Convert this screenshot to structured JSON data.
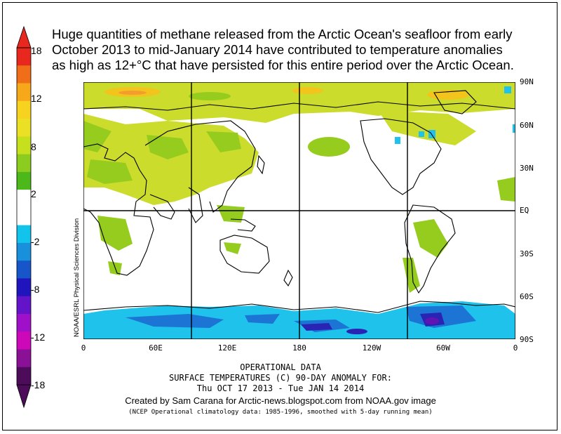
{
  "headline": "Huge quantities of methane released from the Arctic Ocean's seafloor from early\nOctober 2013 to mid-January 2014 have contributed to temperature anomalies\nas high as 12+°C that have persisted for this entire period over the Arctic Ocean.",
  "color_scale": {
    "labels": [
      "18",
      "12",
      "8",
      "2",
      "-2",
      "-8",
      "-12",
      "-18"
    ],
    "bands": [
      "#e8281e",
      "#f06e18",
      "#f7a81a",
      "#f7d21e",
      "#ece024",
      "#c6e01e",
      "#8ccc1e",
      "#4cb81a",
      "#ffffff",
      "#ffffff",
      "#12c4ec",
      "#1890dc",
      "#1656c8",
      "#2014bc",
      "#6414c8",
      "#a010c8",
      "#cc08b8",
      "#8a1096",
      "#4c0c5a"
    ]
  },
  "map": {
    "lat_labels": [
      "90N",
      "60N",
      "30N",
      "EQ",
      "30S",
      "60S",
      "90S"
    ],
    "lon_labels": [
      "0",
      "60E",
      "120E",
      "180",
      "120W",
      "60W",
      "0"
    ],
    "colors": {
      "warm_light": "#ccdc2c",
      "warm_mid": "#96cc1e",
      "warm_strong": "#f2c41c",
      "warm_hot": "#f49c30",
      "cold_light": "#1ec2ea",
      "cold_mid": "#1c74d4",
      "cold_strong": "#2a24b4",
      "cold_deep": "#6014b4"
    }
  },
  "side_credit": "NOAA/ESRL Physical Sciences Division",
  "footer": {
    "line1": "OPERATIONAL DATA",
    "line2": "SURFACE TEMPERATURES (C)   90-DAY ANOMALY FOR:",
    "line3": "Thu OCT 17 2013 - Tue JAN 14 2014",
    "line4": "Created by Sam Carana for Arctic-news.blogspot.com from NOAA.gov image",
    "line5": "(NCEP Operational climatology data: 1985-1996, smoothed with 5-day running mean)"
  }
}
